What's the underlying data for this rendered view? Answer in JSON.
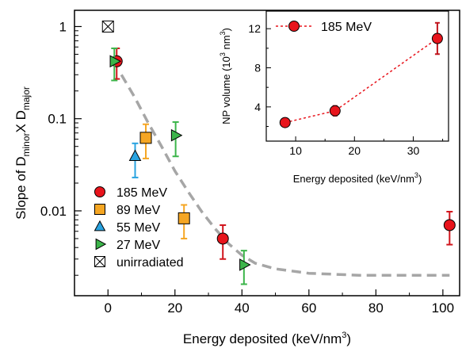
{
  "chart_data": [
    {
      "type": "scatter",
      "xlabel": "Energy deposited (keV/nm",
      "xlabel_sup": "3",
      "xlabel_end": ")",
      "ylabel_parts": [
        "Slope of D",
        "minor",
        "X D",
        "major"
      ],
      "xlim": [
        -10,
        105
      ],
      "ylim_log": [
        0.0012,
        1.5
      ],
      "y_scale": "log",
      "x_ticks": [
        0,
        20,
        40,
        60,
        80,
        100
      ],
      "y_ticks": [
        {
          "value": 1,
          "label": "1"
        },
        {
          "value": 0.1,
          "label": "0.1"
        },
        {
          "value": 0.01,
          "label": "0.01"
        }
      ],
      "series": [
        {
          "name": "185 MeV",
          "marker": "circle",
          "color": "#e8141c",
          "err_color": "#d1141c",
          "points": [
            {
              "x": 2.6,
              "y": 0.42,
              "lo": 0.27,
              "hi": 0.58
            },
            {
              "x": 34.3,
              "y": 0.005,
              "lo": 0.003,
              "hi": 0.007
            },
            {
              "x": 102,
              "y": 0.007,
              "lo": 0.0043,
              "hi": 0.0098
            }
          ]
        },
        {
          "name": "89 MeV",
          "marker": "square",
          "color": "#f5a623",
          "err_color": "#f5a623",
          "points": [
            {
              "x": 11.3,
              "y": 0.062,
              "lo": 0.037,
              "hi": 0.087
            },
            {
              "x": 22.7,
              "y": 0.0083,
              "lo": 0.005,
              "hi": 0.0116
            }
          ]
        },
        {
          "name": "55 MeV",
          "marker": "triangle-up",
          "color": "#29a3e0",
          "err_color": "#29a3e0",
          "points": [
            {
              "x": 8.1,
              "y": 0.039,
              "lo": 0.023,
              "hi": 0.054
            }
          ]
        },
        {
          "name": "27 MeV",
          "marker": "triangle-right",
          "color": "#3cb54a",
          "err_color": "#3cb54a",
          "points": [
            {
              "x": 1.9,
              "y": 0.42,
              "lo": 0.26,
              "hi": 0.58
            },
            {
              "x": 20.2,
              "y": 0.066,
              "lo": 0.039,
              "hi": 0.092
            },
            {
              "x": 40.6,
              "y": 0.0026,
              "lo": 0.0016,
              "hi": 0.0037
            }
          ]
        },
        {
          "name": "unirradiated",
          "marker": "square-x",
          "color": "#ffffff",
          "err_color": "#000000",
          "points": [
            {
              "x": 0,
              "y": 1.0
            }
          ]
        }
      ],
      "fit_curve": {
        "color": "#a6a6a6",
        "points": [
          [
            4,
            0.3
          ],
          [
            8,
            0.17
          ],
          [
            12,
            0.09
          ],
          [
            16,
            0.05
          ],
          [
            20,
            0.027
          ],
          [
            24,
            0.016
          ],
          [
            28,
            0.0098
          ],
          [
            32,
            0.0064
          ],
          [
            36,
            0.0044
          ],
          [
            40,
            0.0033
          ],
          [
            44,
            0.0027
          ],
          [
            50,
            0.00235
          ],
          [
            60,
            0.0021
          ],
          [
            75,
            0.002
          ],
          [
            102,
            0.002
          ]
        ]
      }
    },
    {
      "type": "line",
      "xlabel": "Energy deposited (keV/nm",
      "xlabel_sup": "3",
      "xlabel_end": ")",
      "ylabel_start": "NP volume (10",
      "ylabel_sup": "3",
      "ylabel_end": " nm",
      "ylabel_sup2": "3",
      "ylabel_close": ")",
      "xlim": [
        5,
        36
      ],
      "ylim": [
        0.5,
        13.8
      ],
      "x_ticks": [
        10,
        20,
        30
      ],
      "y_ticks": [
        4,
        8,
        12
      ],
      "series": [
        {
          "name": "185 MeV",
          "color": "#e8141c",
          "points": [
            {
              "x": 8.2,
              "y": 2.4,
              "lo": 2.2,
              "hi": 2.6
            },
            {
              "x": 16.7,
              "y": 3.6,
              "lo": 3.1,
              "hi": 4.1
            },
            {
              "x": 34.1,
              "y": 11.0,
              "lo": 9.4,
              "hi": 12.6
            }
          ]
        }
      ]
    }
  ]
}
